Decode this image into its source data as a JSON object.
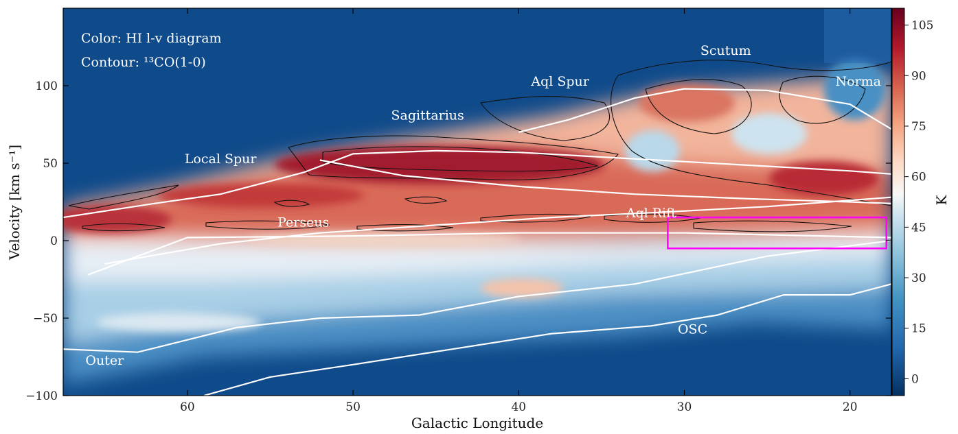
{
  "chart_data": {
    "type": "heatmap",
    "title": "",
    "xlabel": "Galactic Longitude",
    "ylabel": "Velocity [km s⁻¹]",
    "xlim": [
      67.5,
      17.5
    ],
    "ylim": [
      -100,
      150
    ],
    "x_ticks": [
      60,
      50,
      40,
      30,
      20
    ],
    "y_ticks": [
      -100,
      -50,
      0,
      50,
      100
    ],
    "annotation_lines": [
      "Color: HI l-v diagram",
      "Contour: ¹³CO(1-0)"
    ],
    "colorbar": {
      "label": "K",
      "range": [
        -5,
        110
      ],
      "ticks": [
        0,
        15,
        30,
        45,
        60,
        75,
        90,
        105
      ],
      "colormap": "RdBu_r"
    },
    "features": [
      {
        "name": "Local Spur",
        "label_x": 58,
        "label_y": 50
      },
      {
        "name": "Sagittarius",
        "label_x": 45.5,
        "label_y": 78
      },
      {
        "name": "Aql Spur",
        "label_x": 37.5,
        "label_y": 100
      },
      {
        "name": "Scutum",
        "label_x": 27.5,
        "label_y": 120
      },
      {
        "name": "Norma",
        "label_x": 19.5,
        "label_y": 100
      },
      {
        "name": "Perseus",
        "label_x": 53,
        "label_y": 9
      },
      {
        "name": "Aql Rift",
        "label_x": 32,
        "label_y": 15
      },
      {
        "name": "OSC",
        "label_x": 29.5,
        "label_y": -60
      },
      {
        "name": "Outer",
        "label_x": 65,
        "label_y": -80
      }
    ],
    "spiral_arm_tracks": [
      {
        "points": [
          [
            67.5,
            15
          ],
          [
            62,
            24
          ],
          [
            58,
            30
          ],
          [
            53,
            44
          ],
          [
            50,
            56
          ],
          [
            45,
            58
          ],
          [
            40,
            57
          ],
          [
            35,
            54
          ],
          [
            30,
            51
          ],
          [
            25,
            48
          ],
          [
            20,
            45
          ],
          [
            17.5,
            43
          ]
        ]
      },
      {
        "points": [
          [
            52,
            52
          ],
          [
            47,
            42
          ],
          [
            40,
            35
          ],
          [
            33,
            30
          ],
          [
            26,
            27
          ],
          [
            20,
            25
          ],
          [
            17.5,
            24
          ]
        ]
      },
      {
        "points": [
          [
            40,
            70
          ],
          [
            37,
            78
          ],
          [
            33,
            92
          ],
          [
            30,
            98
          ],
          [
            25,
            97
          ],
          [
            20,
            88
          ],
          [
            17.5,
            72
          ]
        ]
      },
      {
        "points": [
          [
            65,
            -15
          ],
          [
            58,
            -2
          ],
          [
            52,
            5
          ],
          [
            45,
            10
          ],
          [
            38,
            15
          ],
          [
            32,
            18
          ],
          [
            25,
            22
          ],
          [
            17.5,
            28
          ]
        ]
      },
      {
        "points": [
          [
            66,
            -22
          ],
          [
            60,
            2
          ],
          [
            50,
            3
          ],
          [
            40,
            5
          ],
          [
            30,
            5
          ],
          [
            17.5,
            2
          ]
        ]
      },
      {
        "points": [
          [
            67.5,
            -70
          ],
          [
            63,
            -72
          ],
          [
            57,
            -56
          ],
          [
            52,
            -50
          ],
          [
            46,
            -48
          ],
          [
            40,
            -36
          ],
          [
            33,
            -28
          ],
          [
            25,
            -10
          ],
          [
            17.5,
            0
          ]
        ]
      },
      {
        "points": [
          [
            59,
            -100
          ],
          [
            55,
            -88
          ],
          [
            50,
            -80
          ],
          [
            44,
            -70
          ],
          [
            38,
            -60
          ],
          [
            32,
            -55
          ],
          [
            28,
            -48
          ],
          [
            24,
            -35
          ],
          [
            20,
            -35
          ],
          [
            17.5,
            -28
          ]
        ]
      }
    ],
    "highlight_box": {
      "x_range": [
        31,
        17.8
      ],
      "y_range": [
        -5,
        15
      ],
      "color": "#ff00ff"
    }
  }
}
